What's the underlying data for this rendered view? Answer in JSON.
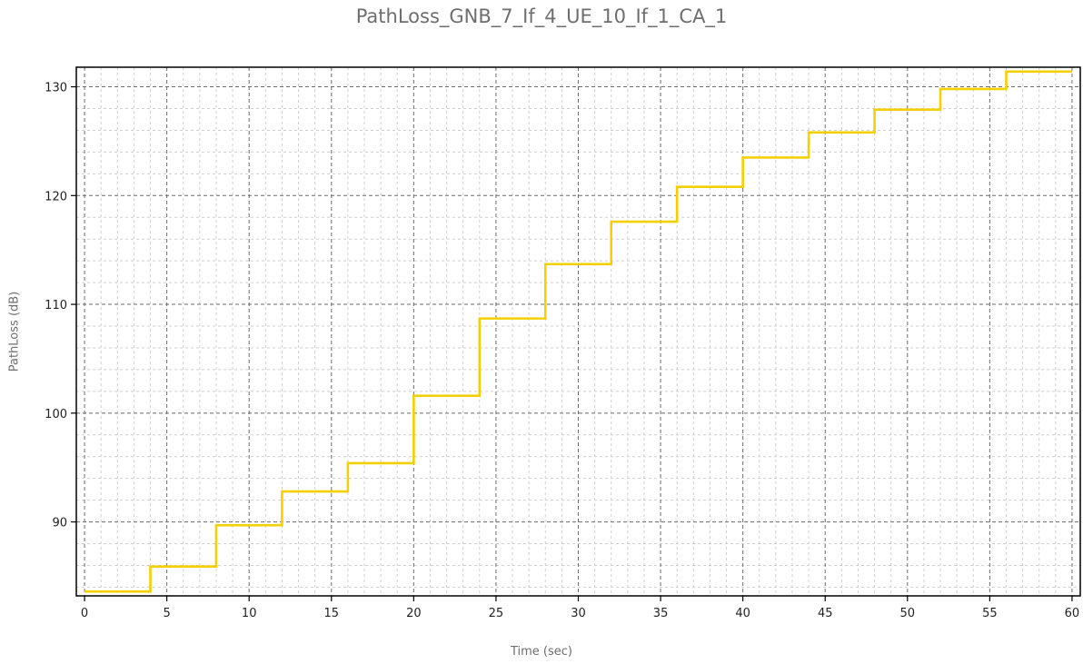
{
  "chart_data": {
    "type": "line",
    "title": "PathLoss_GNB_7_If_4_UE_10_If_1_CA_1",
    "xlabel": "Time (sec)",
    "ylabel": "PathLoss (dB)",
    "xlim": [
      -0.5,
      60.5
    ],
    "ylim": [
      83.2,
      131.8
    ],
    "x_ticks": [
      0,
      5,
      10,
      15,
      20,
      25,
      30,
      35,
      40,
      45,
      50,
      55,
      60
    ],
    "y_ticks": [
      90,
      100,
      110,
      120,
      130
    ],
    "grid": true,
    "legend": "none",
    "line_color": "#f5d000",
    "series": [
      {
        "step": true,
        "x": [
          0,
          4,
          8,
          12,
          16,
          20,
          24,
          28,
          32,
          36,
          40,
          44,
          48,
          52,
          56,
          60
        ],
        "y": [
          83.6,
          85.9,
          89.7,
          92.8,
          95.4,
          101.6,
          108.7,
          113.7,
          117.6,
          120.8,
          123.5,
          125.8,
          127.9,
          129.8,
          131.4,
          131.4
        ]
      }
    ]
  }
}
